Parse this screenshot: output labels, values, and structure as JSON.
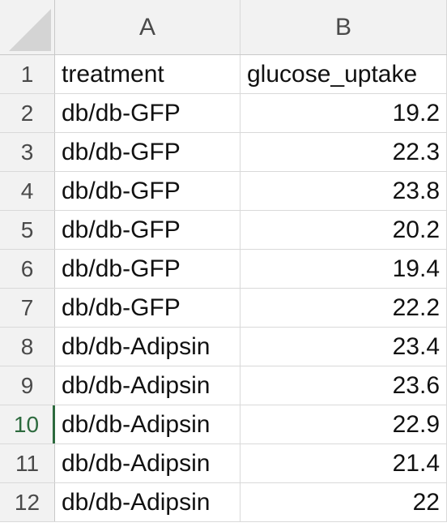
{
  "columns": [
    "A",
    "B"
  ],
  "header_row": {
    "row": "1",
    "a": "treatment",
    "b": "glucose_uptake"
  },
  "rows": [
    {
      "row": "2",
      "treatment": "db/db-GFP",
      "value": "19.2"
    },
    {
      "row": "3",
      "treatment": "db/db-GFP",
      "value": "22.3"
    },
    {
      "row": "4",
      "treatment": "db/db-GFP",
      "value": "23.8"
    },
    {
      "row": "5",
      "treatment": "db/db-GFP",
      "value": "20.2"
    },
    {
      "row": "6",
      "treatment": "db/db-GFP",
      "value": "19.4"
    },
    {
      "row": "7",
      "treatment": "db/db-GFP",
      "value": "22.2"
    },
    {
      "row": "8",
      "treatment": "db/db-Adipsin",
      "value": "23.4"
    },
    {
      "row": "9",
      "treatment": "db/db-Adipsin",
      "value": "23.6"
    },
    {
      "row": "10",
      "treatment": "db/db-Adipsin",
      "value": "22.9"
    },
    {
      "row": "11",
      "treatment": "db/db-Adipsin",
      "value": "21.4"
    },
    {
      "row": "12",
      "treatment": "db/db-Adipsin",
      "value": "22"
    }
  ],
  "active_row": "10",
  "colors": {
    "active_row_accent": "#2d6a3e",
    "header_bg": "#f2f2f2",
    "grid": "#d9d9d9"
  }
}
